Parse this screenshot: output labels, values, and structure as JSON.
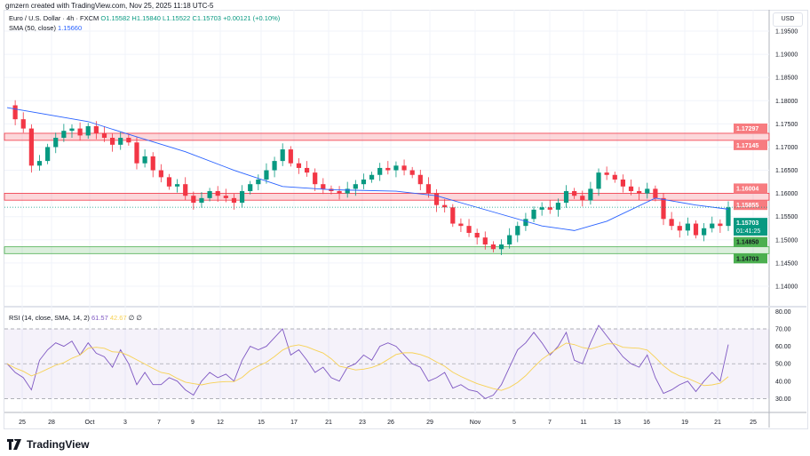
{
  "credit": "gmzern created with TradingView.com, Nov 25, 2025 11:18 UTC-5",
  "legend": {
    "symbol": "Euro / U.S. Dollar · 4h · FXCM",
    "open": "O1.15582",
    "high": "H1.15840",
    "low": "L1.15522",
    "close": "C1.15703",
    "change": "+0.00121 (+0.10%)",
    "sma_label": "SMA (50, close)",
    "sma_value": "1.15660"
  },
  "rsi_legend": {
    "label": "RSI (14, close, SMA, 14, 2)",
    "rsi": "61.57",
    "rsi_sma": "42.67",
    "extra": "∅ ∅"
  },
  "currency": "USD",
  "footer": {
    "brand": "TradingView",
    "icon": "tradingview-logo-icon"
  },
  "colors": {
    "up": "#089981",
    "down": "#f23645",
    "sma": "#2962ff",
    "rsi": "#7e57c2",
    "rsi_sma": "#f7d154",
    "resistance": "#f23645",
    "support": "#4caf50"
  },
  "chart_data": {
    "type": "candlestick",
    "price_ticks": [
      "1.19500",
      "1.19000",
      "1.18500",
      "1.18000",
      "1.17500",
      "1.17000",
      "1.16500",
      "1.16000",
      "1.15500",
      "1.15000",
      "1.14500",
      "1.14000"
    ],
    "price_range": [
      1.1395,
      1.1955
    ],
    "x_ticks": [
      "25",
      "28",
      "Oct",
      "3",
      "7",
      "9",
      "12",
      "15",
      "17",
      "21",
      "23",
      "26",
      "29",
      "Nov",
      "5",
      "7",
      "11",
      "13",
      "16",
      "19",
      "21",
      "25"
    ],
    "closes": [
      1.179,
      1.176,
      1.174,
      1.166,
      1.167,
      1.17,
      1.172,
      1.1735,
      1.174,
      1.1725,
      1.1745,
      1.173,
      1.172,
      1.1705,
      1.172,
      1.171,
      1.1665,
      1.168,
      1.165,
      1.1635,
      1.1615,
      1.162,
      1.1595,
      1.158,
      1.159,
      1.1605,
      1.1595,
      1.159,
      1.158,
      1.1605,
      1.162,
      1.163,
      1.165,
      1.167,
      1.1695,
      1.1665,
      1.1655,
      1.1645,
      1.162,
      1.161,
      1.1605,
      1.16,
      1.161,
      1.162,
      1.163,
      1.164,
      1.1655,
      1.165,
      1.166,
      1.165,
      1.164,
      1.162,
      1.16,
      1.1575,
      1.157,
      1.1535,
      1.153,
      1.1515,
      1.1505,
      1.149,
      1.148,
      1.149,
      1.151,
      1.153,
      1.1545,
      1.1565,
      1.157,
      1.1565,
      1.158,
      1.1605,
      1.1595,
      1.1585,
      1.161,
      1.1645,
      1.164,
      1.163,
      1.1615,
      1.1605,
      1.16,
      1.161,
      1.159,
      1.1545,
      1.153,
      1.152,
      1.1535,
      1.151,
      1.1525,
      1.1535,
      1.153,
      1.157
    ],
    "sma": [
      [
        0,
        1.1785
      ],
      [
        10,
        1.1755
      ],
      [
        16,
        1.1722
      ],
      [
        22,
        1.169
      ],
      [
        28,
        1.165
      ],
      [
        34,
        1.1615
      ],
      [
        40,
        1.1608
      ],
      [
        48,
        1.1605
      ],
      [
        53,
        1.1595
      ],
      [
        60,
        1.156
      ],
      [
        66,
        1.153
      ],
      [
        70,
        1.152
      ],
      [
        74,
        1.154
      ],
      [
        80,
        1.159
      ],
      [
        85,
        1.1575
      ],
      [
        89,
        1.1566
      ]
    ],
    "levels": [
      {
        "type": "resistance",
        "top": "1.17297",
        "bottom": "1.17145"
      },
      {
        "type": "resistance",
        "top": "1.16004",
        "bottom": "1.15855"
      },
      {
        "type": "support",
        "top": "1.14850",
        "bottom": "1.14703"
      }
    ],
    "last_price": "1.15703",
    "countdown": "01:41:25",
    "rsi": {
      "ticks": [
        "80.00",
        "70.00",
        "60.00",
        "50.00",
        "40.00",
        "30.00"
      ],
      "range": [
        27,
        81
      ],
      "bands": [
        30,
        50,
        70
      ],
      "values": [
        50,
        45,
        42,
        35,
        52,
        58,
        62,
        60,
        63,
        55,
        62,
        56,
        54,
        48,
        58,
        50,
        38,
        45,
        38,
        38,
        42,
        40,
        35,
        32,
        40,
        45,
        42,
        44,
        40,
        52,
        60,
        58,
        60,
        65,
        70,
        55,
        58,
        52,
        45,
        48,
        42,
        40,
        48,
        50,
        55,
        52,
        60,
        62,
        60,
        55,
        50,
        48,
        40,
        42,
        45,
        36,
        38,
        35,
        34,
        30,
        32,
        38,
        48,
        58,
        62,
        68,
        62,
        55,
        60,
        68,
        52,
        50,
        62,
        72,
        66,
        60,
        54,
        50,
        48,
        55,
        42,
        33,
        35,
        38,
        40,
        34,
        40,
        45,
        40,
        61
      ]
    }
  }
}
